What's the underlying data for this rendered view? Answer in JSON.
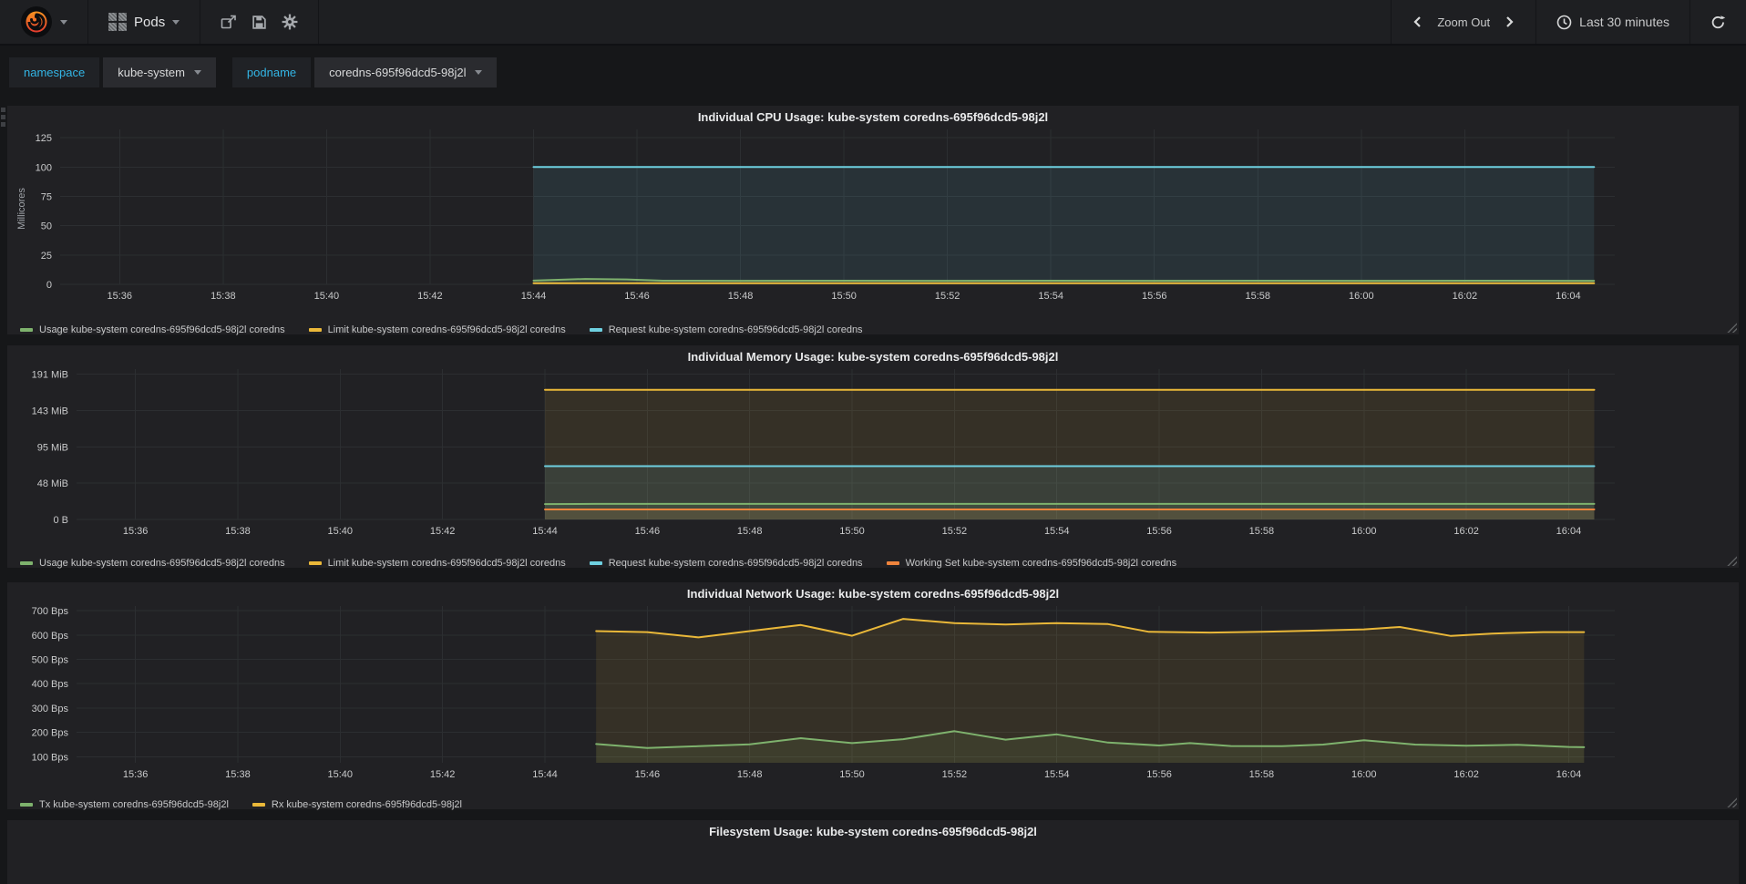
{
  "navbar": {
    "dashboard_title": "Pods",
    "zoom_out_label": "Zoom Out",
    "time_range_label": "Last 30 minutes",
    "icons": [
      "grafana-logo",
      "caret-down",
      "dashboard-grid",
      "share",
      "save",
      "gear",
      "chevron-left",
      "chevron-right",
      "clock",
      "refresh"
    ]
  },
  "variables": [
    {
      "label": "namespace",
      "value": "kube-system"
    },
    {
      "label": "podname",
      "value": "coredns-695f96dcd5-98j2l"
    }
  ],
  "colors": {
    "green": "#7EB26D",
    "yellow": "#EAB839",
    "cyan": "#6ED0E0",
    "orange": "#EF843C",
    "variable_label": "#33B5E5",
    "panel_bg": "#212124",
    "page_bg": "#161719"
  },
  "chart_data": [
    {
      "type": "line",
      "title": "Individual CPU Usage: kube-system coredns-695f96dcd5-98j2l",
      "ylabel": "Millicores",
      "unit": "millicores",
      "grid": true,
      "legend_position": "bottom",
      "ylim": [
        0,
        129
      ],
      "xlim": [
        34.85,
        64.9
      ],
      "yticks": [
        {
          "v": 0,
          "label": "0"
        },
        {
          "v": 25,
          "label": "25"
        },
        {
          "v": 50,
          "label": "50"
        },
        {
          "v": 75,
          "label": "75"
        },
        {
          "v": 100,
          "label": "100"
        },
        {
          "v": 125,
          "label": "125"
        }
      ],
      "xticks": [
        {
          "v": 36,
          "label": "15:36"
        },
        {
          "v": 38,
          "label": "15:38"
        },
        {
          "v": 40,
          "label": "15:40"
        },
        {
          "v": 42,
          "label": "15:42"
        },
        {
          "v": 44,
          "label": "15:44"
        },
        {
          "v": 46,
          "label": "15:46"
        },
        {
          "v": 48,
          "label": "15:48"
        },
        {
          "v": 50,
          "label": "15:50"
        },
        {
          "v": 52,
          "label": "15:52"
        },
        {
          "v": 54,
          "label": "15:54"
        },
        {
          "v": 56,
          "label": "15:56"
        },
        {
          "v": 58,
          "label": "15:58"
        },
        {
          "v": 60,
          "label": "16:00"
        },
        {
          "v": 62,
          "label": "16:02"
        },
        {
          "v": 64,
          "label": "16:04"
        }
      ],
      "series": [
        {
          "name": "Usage kube-system coredns-695f96dcd5-98j2l coredns",
          "color": "#7EB26D",
          "points": [
            [
              44,
              3.2
            ],
            [
              45,
              4.6
            ],
            [
              45.8,
              4.2
            ],
            [
              46.5,
              3.1
            ],
            [
              48,
              3.0
            ],
            [
              50,
              3.1
            ],
            [
              52,
              3.0
            ],
            [
              54,
              3.1
            ],
            [
              56,
              3.0
            ],
            [
              58,
              3.1
            ],
            [
              60,
              3.0
            ],
            [
              62,
              3.1
            ],
            [
              64,
              3.0
            ],
            [
              64.5,
              3.0
            ]
          ]
        },
        {
          "name": "Limit kube-system coredns-695f96dcd5-98j2l coredns",
          "color": "#EAB839",
          "points": [
            [
              44,
              0.9
            ],
            [
              64.5,
              0.9
            ]
          ]
        },
        {
          "name": "Request kube-system coredns-695f96dcd5-98j2l coredns",
          "color": "#6ED0E0",
          "points": [
            [
              44,
              100
            ],
            [
              64.5,
              100
            ]
          ]
        }
      ]
    },
    {
      "type": "line",
      "title": "Individual Memory Usage: kube-system coredns-695f96dcd5-98j2l",
      "ylabel": "",
      "unit": "MiB",
      "grid": true,
      "legend_position": "bottom",
      "ylim": [
        0,
        192.5
      ],
      "xlim": [
        34.85,
        64.9
      ],
      "yticks": [
        {
          "v": 0,
          "label": "0 B"
        },
        {
          "v": 48,
          "label": "48 MiB"
        },
        {
          "v": 95,
          "label": "95 MiB"
        },
        {
          "v": 143,
          "label": "143 MiB"
        },
        {
          "v": 191,
          "label": "191 MiB"
        }
      ],
      "xticks": [
        {
          "v": 36,
          "label": "15:36"
        },
        {
          "v": 38,
          "label": "15:38"
        },
        {
          "v": 40,
          "label": "15:40"
        },
        {
          "v": 42,
          "label": "15:42"
        },
        {
          "v": 44,
          "label": "15:44"
        },
        {
          "v": 46,
          "label": "15:46"
        },
        {
          "v": 48,
          "label": "15:48"
        },
        {
          "v": 50,
          "label": "15:50"
        },
        {
          "v": 52,
          "label": "15:52"
        },
        {
          "v": 54,
          "label": "15:54"
        },
        {
          "v": 56,
          "label": "15:56"
        },
        {
          "v": 58,
          "label": "15:58"
        },
        {
          "v": 60,
          "label": "16:00"
        },
        {
          "v": 62,
          "label": "16:02"
        },
        {
          "v": 64,
          "label": "16:04"
        }
      ],
      "series": [
        {
          "name": "Usage kube-system coredns-695f96dcd5-98j2l coredns",
          "color": "#7EB26D",
          "points": [
            [
              44,
              20.2
            ],
            [
              45,
              20.5
            ],
            [
              64.5,
              20.5
            ]
          ]
        },
        {
          "name": "Limit kube-system coredns-695f96dcd5-98j2l coredns",
          "color": "#EAB839",
          "points": [
            [
              44,
              170
            ],
            [
              64.5,
              170
            ]
          ]
        },
        {
          "name": "Request kube-system coredns-695f96dcd5-98j2l coredns",
          "color": "#6ED0E0",
          "points": [
            [
              44,
              70
            ],
            [
              64.5,
              70
            ]
          ]
        },
        {
          "name": "Working Set kube-system coredns-695f96dcd5-98j2l coredns",
          "color": "#EF843C",
          "points": [
            [
              44,
              13.2
            ],
            [
              64.5,
              13.2
            ]
          ]
        }
      ]
    },
    {
      "type": "line",
      "title": "Individual Network Usage: kube-system coredns-695f96dcd5-98j2l",
      "ylabel": "",
      "unit": "Bps",
      "grid": true,
      "legend_position": "bottom",
      "ylim": [
        75,
        704
      ],
      "xlim": [
        34.85,
        64.9
      ],
      "yticks": [
        {
          "v": 100,
          "label": "100 Bps"
        },
        {
          "v": 200,
          "label": "200 Bps"
        },
        {
          "v": 300,
          "label": "300 Bps"
        },
        {
          "v": 400,
          "label": "400 Bps"
        },
        {
          "v": 500,
          "label": "500 Bps"
        },
        {
          "v": 600,
          "label": "600 Bps"
        },
        {
          "v": 700,
          "label": "700 Bps"
        }
      ],
      "xticks": [
        {
          "v": 36,
          "label": "15:36"
        },
        {
          "v": 38,
          "label": "15:38"
        },
        {
          "v": 40,
          "label": "15:40"
        },
        {
          "v": 42,
          "label": "15:42"
        },
        {
          "v": 44,
          "label": "15:44"
        },
        {
          "v": 46,
          "label": "15:46"
        },
        {
          "v": 48,
          "label": "15:48"
        },
        {
          "v": 50,
          "label": "15:50"
        },
        {
          "v": 52,
          "label": "15:52"
        },
        {
          "v": 54,
          "label": "15:54"
        },
        {
          "v": 56,
          "label": "15:56"
        },
        {
          "v": 58,
          "label": "15:58"
        },
        {
          "v": 60,
          "label": "16:00"
        },
        {
          "v": 62,
          "label": "16:02"
        },
        {
          "v": 64,
          "label": "16:04"
        }
      ],
      "series": [
        {
          "name": "Tx kube-system coredns-695f96dcd5-98j2l",
          "color": "#7EB26D",
          "points": [
            [
              45,
              152
            ],
            [
              46,
              136
            ],
            [
              47,
              143
            ],
            [
              48,
              151
            ],
            [
              49,
              176
            ],
            [
              50,
              156
            ],
            [
              51,
              172
            ],
            [
              52,
              205
            ],
            [
              53,
              170
            ],
            [
              54,
              192
            ],
            [
              55,
              158
            ],
            [
              56,
              146
            ],
            [
              56.6,
              156
            ],
            [
              57.4,
              144
            ],
            [
              58.4,
              143
            ],
            [
              59.2,
              150
            ],
            [
              60,
              168
            ],
            [
              61,
              150
            ],
            [
              62,
              145
            ],
            [
              63,
              149
            ],
            [
              64,
              140
            ],
            [
              64.3,
              139
            ]
          ]
        },
        {
          "name": "Rx kube-system coredns-695f96dcd5-98j2l",
          "color": "#EAB839",
          "points": [
            [
              45,
              616
            ],
            [
              46,
              612
            ],
            [
              47,
              590
            ],
            [
              48,
              616
            ],
            [
              49,
              641
            ],
            [
              50,
              597
            ],
            [
              51,
              666
            ],
            [
              52,
              649
            ],
            [
              53,
              643
            ],
            [
              54,
              649
            ],
            [
              55,
              645
            ],
            [
              55.8,
              613
            ],
            [
              57,
              610
            ],
            [
              58,
              613
            ],
            [
              59,
              618
            ],
            [
              60,
              623
            ],
            [
              60.7,
              633
            ],
            [
              61.7,
              596
            ],
            [
              62.5,
              606
            ],
            [
              63.5,
              612
            ],
            [
              64.3,
              612
            ]
          ]
        }
      ]
    },
    {
      "type": "line",
      "title": "Filesystem Usage: kube-system coredns-695f96dcd5-98j2l"
    }
  ]
}
